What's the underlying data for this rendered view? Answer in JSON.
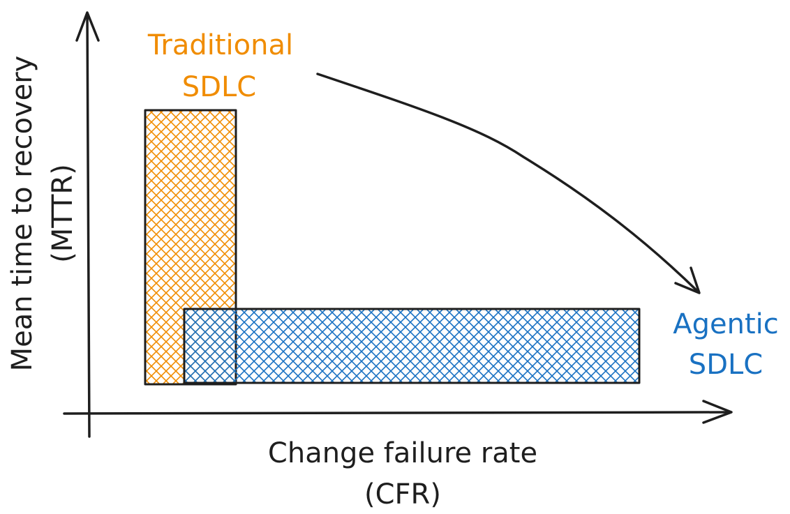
{
  "axes": {
    "x_label_line1": "Change failure rate",
    "x_label_line2": "(CFR)",
    "y_label_line1": "Mean time to recovery",
    "y_label_line2": "(MTTR)"
  },
  "regions": {
    "traditional": {
      "label_line1": "Traditional",
      "label_line2": "SDLC",
      "color": "#f08c00"
    },
    "agentic": {
      "label_line1": "Agentic",
      "label_line2": "SDLC",
      "color": "#1971c2"
    }
  },
  "colors": {
    "ink": "#1e1e1e"
  }
}
